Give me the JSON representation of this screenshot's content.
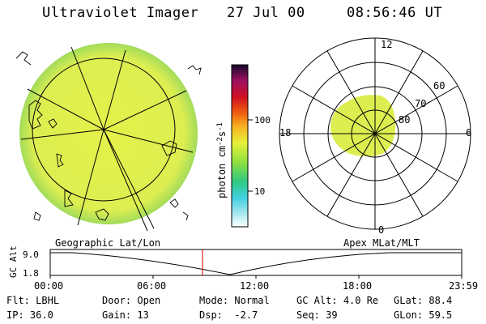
{
  "header": {
    "title": "Ultraviolet Imager",
    "date": "27 Jul 00",
    "time": "08:56:46 UT"
  },
  "colorbar": {
    "unit_label": "photon cm",
    "unit_sup1": "-2",
    "unit_mid": "s",
    "unit_sup2": "-1",
    "ticks": [
      "100",
      "10"
    ]
  },
  "polar_plot": {
    "mlt_labels": {
      "top": "12",
      "left": "18",
      "right": "6",
      "bottom": "0"
    },
    "lat_labels": [
      "60",
      "70",
      "80"
    ]
  },
  "timeline": {
    "left_title": "Geographic Lat/Lon",
    "right_title": "Apex MLat/MLT",
    "axis_label": "GC Alt",
    "y_ticks": [
      "9.0",
      "1.8"
    ],
    "x_ticks": [
      "00:00",
      "06:00",
      "12:00",
      "18:00",
      "23:59"
    ],
    "current_marker_time": "08:56:46"
  },
  "info": {
    "row1": [
      {
        "label": "Flt:",
        "value": "LBHL"
      },
      {
        "label": "Door:",
        "value": "Open"
      },
      {
        "label": "Mode:",
        "value": "Normal"
      },
      {
        "label": "GC Alt:",
        "value": "4.0 Re"
      },
      {
        "label": "GLat:",
        "value": "88.4"
      }
    ],
    "row2": [
      {
        "label": "IP:",
        "value": "36.0"
      },
      {
        "label": "Gain:",
        "value": "13"
      },
      {
        "label": "Dsp:",
        "value": "-2.7"
      },
      {
        "label": "Seq:",
        "value": "39"
      },
      {
        "label": "GLon:",
        "value": "59.5"
      }
    ]
  },
  "colors": {
    "disk_fill": "#e6f03c",
    "disk_edge": "#8cdc50",
    "marker": "#e02020"
  }
}
